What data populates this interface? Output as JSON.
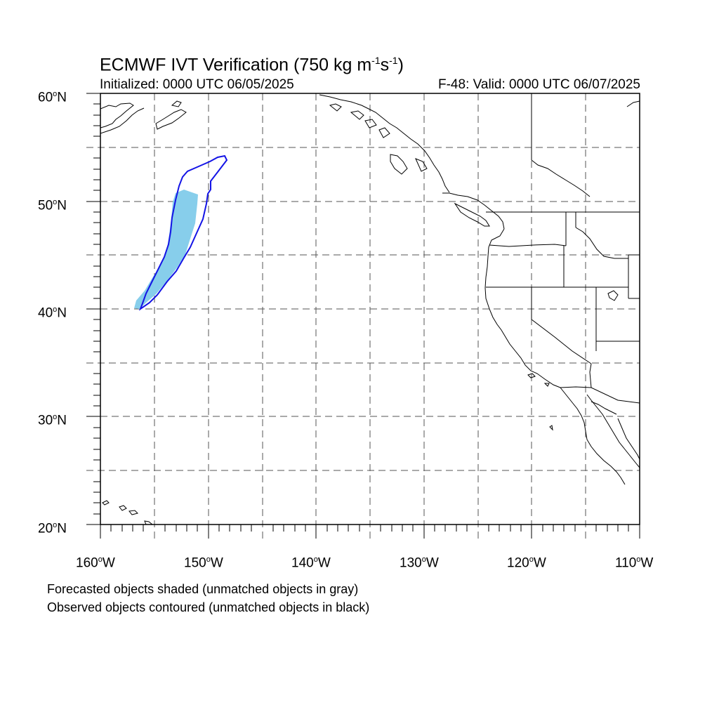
{
  "title_main": "ECMWF IVT Verification (750 kg m",
  "title_exp1": "-1",
  "title_mid": "s",
  "title_exp2": "-1",
  "title_end": ")",
  "init_text": "Initialized: 0000 UTC 06/05/2025",
  "valid_text": "F-48: Valid: 0000 UTC 06/07/2025",
  "lat_labels": [
    "60",
    "50",
    "40",
    "30",
    "20"
  ],
  "lat_suffix": "N",
  "lon_labels": [
    "160",
    "150",
    "140",
    "130",
    "120",
    "110"
  ],
  "lon_suffix": "W",
  "degree_sup": "o",
  "notes": {
    "forecast": "Forecasted objects shaded (unmatched objects in gray)",
    "observed": "Observed objects contoured (unmatched objects in black)"
  },
  "map": {
    "lon_range": [
      -160,
      -110
    ],
    "lat_range": [
      20,
      60
    ],
    "grid": "dashed gray, every 5 degrees",
    "colors": {
      "forecast_fill": "#87CEEB",
      "observed_contour": "#1414E6",
      "coast": "#000000"
    }
  }
}
